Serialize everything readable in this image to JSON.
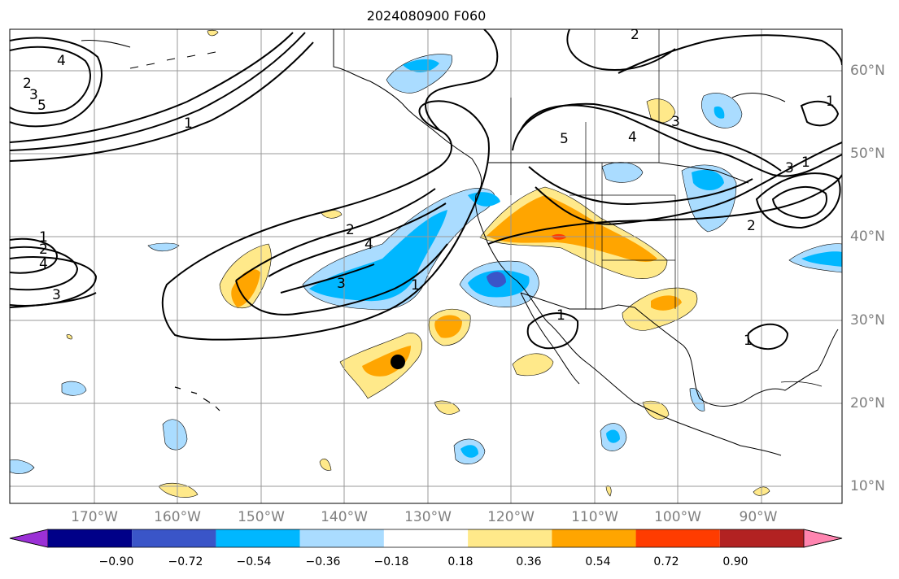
{
  "title": "2024080900 F060",
  "axes": {
    "lon_ticks": [
      "170°W",
      "160°W",
      "150°W",
      "140°W",
      "130°W",
      "120°W",
      "110°W",
      "100°W",
      "90°W"
    ],
    "lat_ticks": [
      "60°N",
      "50°N",
      "40°N",
      "30°N",
      "20°N",
      "10°N"
    ]
  },
  "colorbar": {
    "labels": [
      "−0.90",
      "−0.72",
      "−0.54",
      "−0.36",
      "−0.18",
      "0.18",
      "0.36",
      "0.54",
      "0.72",
      "0.90"
    ],
    "colors": [
      "#9b30d6",
      "#000088",
      "#3a55c8",
      "#00b7ff",
      "#aadcff",
      "#ffffff",
      "#ffe98a",
      "#ffa500",
      "#ff3c00",
      "#b22222",
      "#ff85b0"
    ]
  },
  "contour_labels": [
    "1",
    "2",
    "3",
    "4",
    "5"
  ],
  "marker": "storm-location-dot"
}
